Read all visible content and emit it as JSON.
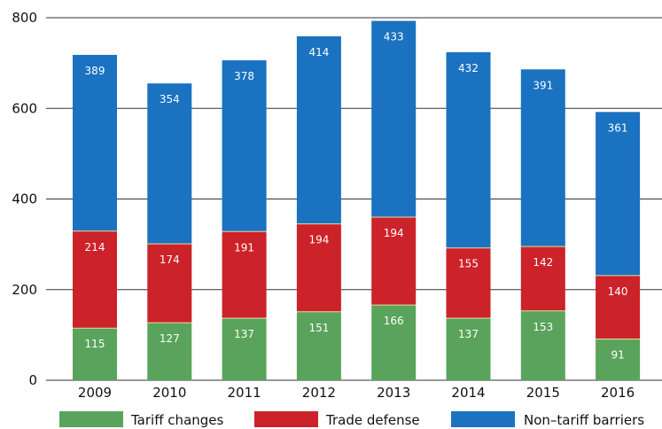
{
  "chart_data": {
    "type": "bar",
    "stacked": true,
    "categories": [
      "2009",
      "2010",
      "2011",
      "2012",
      "2013",
      "2014",
      "2015",
      "2016"
    ],
    "series": [
      {
        "name": "Tariff changes",
        "color": "#5aa35c",
        "values": [
          115,
          127,
          137,
          151,
          166,
          137,
          153,
          91
        ]
      },
      {
        "name": "Trade defense",
        "color": "#cc2229",
        "values": [
          214,
          174,
          191,
          194,
          194,
          155,
          142,
          140
        ]
      },
      {
        "name": "Non–tariff barriers",
        "color": "#1a72c0",
        "values": [
          389,
          354,
          378,
          414,
          433,
          432,
          391,
          361
        ]
      }
    ],
    "ylim": [
      0,
      800
    ],
    "yticks": [
      0,
      200,
      400,
      600,
      800
    ],
    "grid": true,
    "legend": "bottom"
  }
}
